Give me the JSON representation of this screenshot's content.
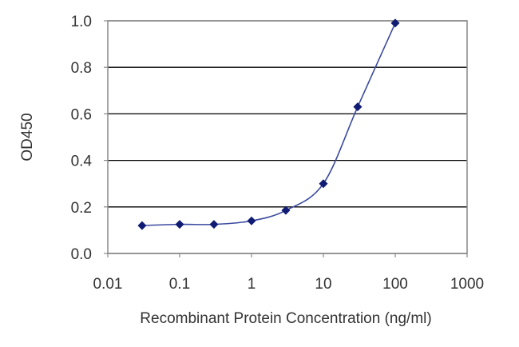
{
  "chart_data": {
    "type": "line",
    "xlabel": "Recombinant Protein Concentration (ng/ml)",
    "ylabel": "OD450",
    "xscale": "log",
    "xlim": [
      0.01,
      1000
    ],
    "ylim": [
      0.0,
      1.0
    ],
    "x_ticks": [
      "0.01",
      "0.1",
      "1",
      "10",
      "100",
      "1000"
    ],
    "y_ticks": [
      "0.0",
      "0.2",
      "0.4",
      "0.6",
      "0.8",
      "1.0"
    ],
    "grid": "horizontal",
    "legend": "none",
    "series": [
      {
        "x": [
          0.03,
          0.1,
          0.3,
          1,
          3,
          10,
          30,
          100
        ],
        "y": [
          0.12,
          0.125,
          0.125,
          0.14,
          0.185,
          0.3,
          0.63,
          0.99
        ]
      }
    ],
    "colors": {
      "line": "#3b4aa0",
      "marker": "#101c73",
      "grid": "#000000",
      "frame": "#888888"
    }
  }
}
